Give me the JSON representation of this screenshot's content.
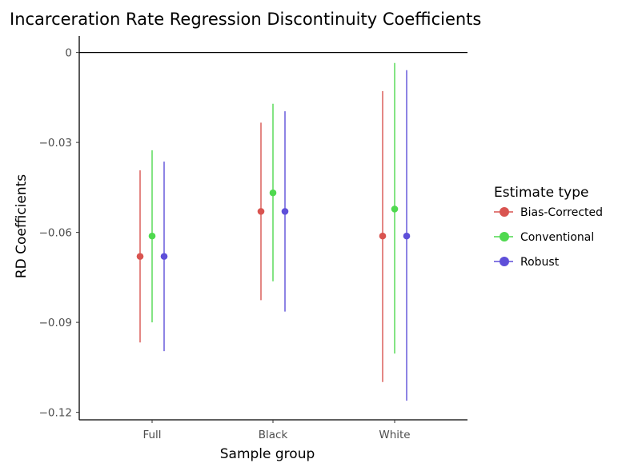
{
  "chart_data": {
    "type": "scatter",
    "subtype": "point-range",
    "title": "Incarceration Rate Regression Discontinuity Coefficients",
    "xlabel": "Sample group",
    "ylabel": "RD Coefficients",
    "categories": [
      "Full",
      "Black",
      "White"
    ],
    "ylim": [
      -0.1225,
      0.0055
    ],
    "yticks": [
      0,
      -0.03,
      -0.06,
      -0.09,
      -0.12
    ],
    "ytick_labels": [
      "0",
      "−0.03",
      "−0.06",
      "−0.09",
      "−0.12"
    ],
    "reference_line": 0,
    "grid": false,
    "legend": {
      "title": "Estimate type",
      "position": "right"
    },
    "series": [
      {
        "name": "Bias-Corrected",
        "color": "#d95450",
        "points": [
          {
            "category": "Full",
            "estimate": -0.068,
            "low": -0.0967,
            "high": -0.0393
          },
          {
            "category": "Black",
            "estimate": -0.053,
            "low": -0.0826,
            "high": -0.0234
          },
          {
            "category": "White",
            "estimate": -0.0612,
            "low": -0.1099,
            "high": -0.0129
          }
        ]
      },
      {
        "name": "Conventional",
        "color": "#4fd94f",
        "points": [
          {
            "category": "Full",
            "estimate": -0.0612,
            "low": -0.09,
            "high": -0.0326
          },
          {
            "category": "Black",
            "estimate": -0.0468,
            "low": -0.0763,
            "high": -0.0171
          },
          {
            "category": "White",
            "estimate": -0.0522,
            "low": -0.1004,
            "high": -0.0035
          }
        ]
      },
      {
        "name": "Robust",
        "color": "#5e4fd9",
        "points": [
          {
            "category": "Full",
            "estimate": -0.068,
            "low": -0.0996,
            "high": -0.0364
          },
          {
            "category": "Black",
            "estimate": -0.053,
            "low": -0.0864,
            "high": -0.0196
          },
          {
            "category": "White",
            "estimate": -0.0612,
            "low": -0.1161,
            "high": -0.0059
          }
        ]
      }
    ]
  }
}
